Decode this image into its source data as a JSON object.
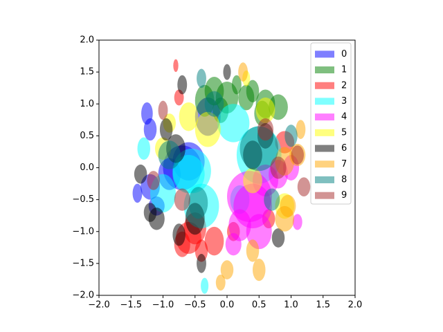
{
  "chart_data": {
    "type": "ellipse",
    "xlim": [
      -2,
      2
    ],
    "ylim": [
      -2,
      2
    ],
    "xticks": [
      {
        "value": -2,
        "label": "−2.0"
      },
      {
        "value": -1.5,
        "label": "−1.5"
      },
      {
        "value": -1,
        "label": "−1.0"
      },
      {
        "value": -0.5,
        "label": "−0.5"
      },
      {
        "value": 0,
        "label": "0.0"
      },
      {
        "value": 0.5,
        "label": "0.5"
      },
      {
        "value": 1,
        "label": "1.0"
      },
      {
        "value": 1.5,
        "label": "1.5"
      },
      {
        "value": 2,
        "label": "2.0"
      }
    ],
    "yticks": [
      {
        "value": -2,
        "label": "−2.0"
      },
      {
        "value": -1.5,
        "label": "−1.5"
      },
      {
        "value": -1,
        "label": "−1.0"
      },
      {
        "value": -0.5,
        "label": "−0.5"
      },
      {
        "value": 0,
        "label": "0.0"
      },
      {
        "value": 0.5,
        "label": "0.5"
      },
      {
        "value": 1,
        "label": "1.0"
      },
      {
        "value": 1.5,
        "label": "1.5"
      },
      {
        "value": 2,
        "label": "2.0"
      }
    ],
    "alpha": 0.5,
    "legend": "upper right",
    "series": [
      {
        "name": "0",
        "color": "#0000ff",
        "x": [
          -1.2,
          -1.4,
          -1.2,
          -0.9,
          -0.7,
          -1.1,
          -0.3,
          -1.25,
          -0.6
        ],
        "y": [
          -0.3,
          -0.4,
          0.6,
          -0.1,
          0.0,
          -0.6,
          0.8,
          0.85,
          0.1
        ],
        "width": [
          0.3,
          0.15,
          0.2,
          0.35,
          0.6,
          0.25,
          0.4,
          0.18,
          0.5
        ],
        "height": [
          0.4,
          0.3,
          0.35,
          0.5,
          0.7,
          0.3,
          0.6,
          0.35,
          0.6
        ]
      },
      {
        "name": "1",
        "color": "#008000",
        "x": [
          0.0,
          -0.2,
          0.3,
          0.6,
          0.8,
          -0.1,
          0.4,
          0.15,
          -0.35,
          0.55
        ],
        "y": [
          1.1,
          1.2,
          1.1,
          1.0,
          0.95,
          0.9,
          1.2,
          1.3,
          1.05,
          0.85
        ],
        "width": [
          0.35,
          0.3,
          0.25,
          0.3,
          0.3,
          0.25,
          0.2,
          0.15,
          0.3,
          0.25
        ],
        "height": [
          0.5,
          0.45,
          0.4,
          0.45,
          0.4,
          0.4,
          0.35,
          0.3,
          0.5,
          0.4
        ]
      },
      {
        "name": "2",
        "color": "#ff0000",
        "x": [
          -0.6,
          -0.2,
          -0.7,
          -0.4,
          0.9,
          -0.75,
          0.1,
          -0.8,
          -0.5,
          0.65
        ],
        "y": [
          -1.1,
          -1.15,
          -1.2,
          -1.3,
          0.4,
          1.1,
          -1.0,
          1.6,
          -0.95,
          -0.8
        ],
        "width": [
          0.4,
          0.3,
          0.25,
          0.2,
          0.3,
          0.15,
          0.2,
          0.08,
          0.35,
          0.2
        ],
        "height": [
          0.5,
          0.45,
          0.4,
          0.35,
          0.35,
          0.25,
          0.3,
          0.2,
          0.5,
          0.3
        ]
      },
      {
        "name": "3",
        "color": "#00ffff",
        "x": [
          -1.0,
          -0.4,
          0.5,
          -0.6,
          0.1,
          0.2,
          -1.3,
          -0.35,
          -0.55
        ],
        "y": [
          -0.4,
          -0.6,
          0.2,
          -0.1,
          0.7,
          -0.5,
          0.3,
          -1.85,
          -0.05
        ],
        "width": [
          0.4,
          0.55,
          0.7,
          0.5,
          0.5,
          0.3,
          0.2,
          0.12,
          0.6
        ],
        "height": [
          0.6,
          0.7,
          0.9,
          0.6,
          0.6,
          0.45,
          0.35,
          0.25,
          0.7
        ]
      },
      {
        "name": "4",
        "color": "#ff00ff",
        "x": [
          0.4,
          0.5,
          0.2,
          1.0,
          0.6,
          0.8,
          0.1,
          1.1,
          0.35
        ],
        "y": [
          -0.6,
          -1.0,
          -0.9,
          0.0,
          -0.2,
          -0.1,
          -1.2,
          -0.85,
          -0.45
        ],
        "width": [
          0.6,
          0.4,
          0.35,
          0.25,
          0.4,
          0.3,
          0.25,
          0.15,
          0.7
        ],
        "height": [
          0.7,
          0.55,
          0.5,
          0.4,
          0.5,
          0.45,
          0.35,
          0.25,
          0.8
        ]
      },
      {
        "name": "5",
        "color": "#ffff00",
        "x": [
          -0.3,
          0.6,
          -0.6,
          -1.0,
          0.4,
          0.9,
          0.3,
          -0.9
        ],
        "y": [
          0.6,
          0.9,
          0.8,
          0.3,
          -0.2,
          -0.6,
          1.4,
          0.7
        ],
        "width": [
          0.4,
          0.3,
          0.3,
          0.25,
          0.3,
          0.3,
          0.12,
          0.2
        ],
        "height": [
          0.55,
          0.4,
          0.45,
          0.35,
          0.4,
          0.4,
          0.25,
          0.3
        ]
      },
      {
        "name": "6",
        "color": "#000000",
        "x": [
          -1.1,
          -1.35,
          -0.8,
          -0.5,
          -0.4,
          0.4,
          -0.7,
          0.6,
          -0.95,
          0.0,
          0.8,
          -1.2,
          -0.75
        ],
        "y": [
          -0.8,
          -0.1,
          0.3,
          -0.8,
          -1.5,
          0.2,
          1.3,
          0.5,
          0.6,
          1.5,
          -1.1,
          -0.7,
          -1.05
        ],
        "width": [
          0.25,
          0.2,
          0.3,
          0.3,
          0.15,
          0.3,
          0.15,
          0.25,
          0.2,
          0.12,
          0.2,
          0.2,
          0.2
        ],
        "height": [
          0.35,
          0.3,
          0.45,
          0.5,
          0.3,
          0.45,
          0.3,
          0.4,
          0.35,
          0.25,
          0.3,
          0.3,
          0.35
        ]
      },
      {
        "name": "7",
        "color": "#ffa500",
        "x": [
          0.9,
          0.5,
          0.0,
          1.1,
          0.9,
          0.4,
          1.15,
          0.25,
          -0.1,
          0.95
        ],
        "y": [
          -0.8,
          -1.6,
          -1.6,
          0.2,
          0.1,
          -1.3,
          0.6,
          1.5,
          -1.8,
          -0.6
        ],
        "width": [
          0.3,
          0.2,
          0.2,
          0.25,
          0.3,
          0.2,
          0.15,
          0.15,
          0.15,
          0.25
        ],
        "height": [
          0.4,
          0.35,
          0.3,
          0.35,
          0.45,
          0.35,
          0.3,
          0.3,
          0.25,
          0.35
        ]
      },
      {
        "name": "8",
        "color": "#008080",
        "x": [
          0.5,
          -0.9,
          -0.4,
          1.0,
          0.7,
          -0.2,
          -0.45
        ],
        "y": [
          0.3,
          0.2,
          1.4,
          0.5,
          -0.5,
          1.0,
          -0.55
        ],
        "width": [
          0.6,
          0.35,
          0.15,
          0.2,
          0.25,
          0.3,
          0.3
        ],
        "height": [
          0.7,
          0.45,
          0.3,
          0.35,
          0.35,
          0.4,
          0.5
        ]
      },
      {
        "name": "9",
        "color": "#a52a2a",
        "x": [
          1.1,
          0.8,
          -0.7,
          1.2,
          -1.0,
          0.6,
          -1.15
        ],
        "y": [
          0.2,
          0.0,
          -0.5,
          -0.3,
          0.9,
          0.6,
          -0.2
        ],
        "width": [
          0.2,
          0.25,
          0.25,
          0.2,
          0.15,
          0.25,
          0.2
        ],
        "height": [
          0.3,
          0.35,
          0.35,
          0.3,
          0.3,
          0.35,
          0.3
        ]
      }
    ]
  }
}
